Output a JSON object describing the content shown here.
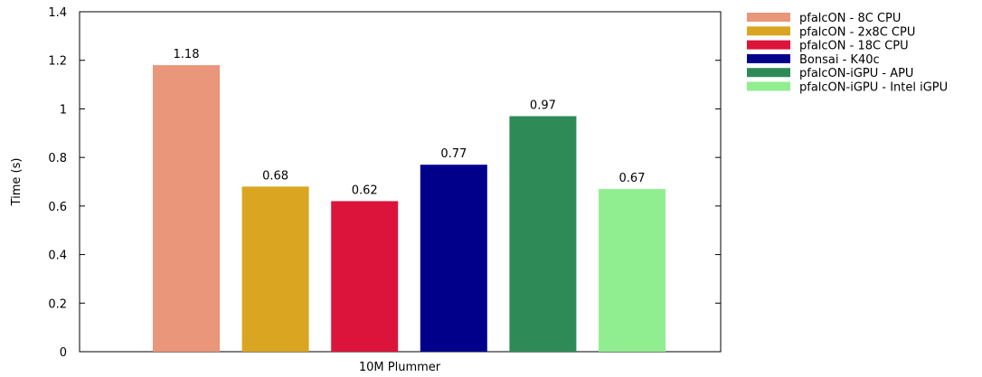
{
  "chart_data": {
    "type": "bar",
    "title": "",
    "xlabel": "10M Plummer",
    "ylabel": "Time (s)",
    "ylim": [
      0,
      1.4
    ],
    "yticks": [
      "0",
      "0.2",
      "0.4",
      "0.6",
      "0.8",
      "1",
      "1.2",
      "1.4"
    ],
    "grid": false,
    "legend_position": "outside-right-top",
    "categories": [
      "10M Plummer"
    ],
    "series": [
      {
        "name": "pfalcON - 8C CPU",
        "color": "#e9967a",
        "values": [
          1.18
        ],
        "label": "1.18"
      },
      {
        "name": "pfalcON - 2x8C CPU",
        "color": "#daa520",
        "values": [
          0.68
        ],
        "label": "0.68"
      },
      {
        "name": "pfalcON - 18C CPU",
        "color": "#dc143c",
        "values": [
          0.62
        ],
        "label": "0.62"
      },
      {
        "name": "Bonsai - K40c",
        "color": "#00008b",
        "values": [
          0.77
        ],
        "label": "0.77"
      },
      {
        "name": "pfalcON-iGPU - APU",
        "color": "#2e8b57",
        "values": [
          0.97
        ],
        "label": "0.97"
      },
      {
        "name": "pfalcON-iGPU - Intel iGPU",
        "color": "#90ee90",
        "values": [
          0.67
        ],
        "label": "0.67"
      }
    ]
  }
}
